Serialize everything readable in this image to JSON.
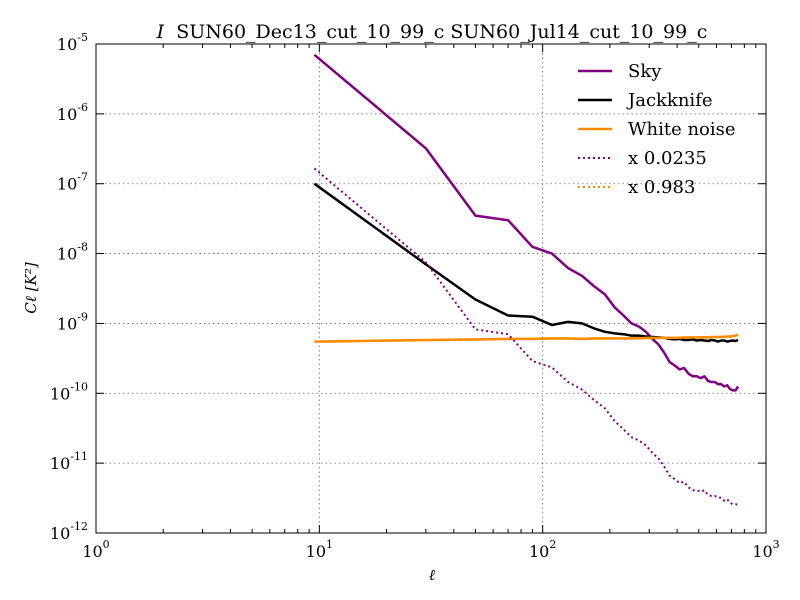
{
  "chart_data": {
    "type": "line",
    "title_prefix": "I",
    "title": "SUN60_Dec13_cut_10_99_c SUN60_Jul14_cut_10_99_c",
    "xlabel": "ℓ",
    "ylabel": "Cℓ [K²]",
    "xscale": "log",
    "yscale": "log",
    "xlim": [
      1,
      1000
    ],
    "ylim": [
      1e-12,
      1e-05
    ],
    "grid": true,
    "legend_position": "top-right",
    "x_tick_labels": [
      {
        "base": "10",
        "exp": "0"
      },
      {
        "base": "10",
        "exp": "1"
      },
      {
        "base": "10",
        "exp": "2"
      },
      {
        "base": "10",
        "exp": "3"
      }
    ],
    "y_tick_labels": [
      {
        "base": "10",
        "exp": "-12"
      },
      {
        "base": "10",
        "exp": "-11"
      },
      {
        "base": "10",
        "exp": "-10"
      },
      {
        "base": "10",
        "exp": "-9"
      },
      {
        "base": "10",
        "exp": "-8"
      },
      {
        "base": "10",
        "exp": "-7"
      },
      {
        "base": "10",
        "exp": "-6"
      },
      {
        "base": "10",
        "exp": "-5"
      }
    ],
    "series": [
      {
        "name": "Sky",
        "color": "#800080",
        "style": "solid",
        "x": [
          9.5,
          30,
          50,
          70,
          90,
          110,
          130,
          150,
          170,
          190,
          210,
          230,
          250,
          270,
          290,
          310,
          330,
          350,
          370,
          390,
          410,
          430,
          450,
          470,
          490,
          510,
          530,
          550,
          570,
          590,
          610,
          630,
          650,
          670,
          690,
          710,
          730,
          750
        ],
        "y": [
          7e-06,
          3.2e-07,
          3.5e-08,
          3e-08,
          1.25e-08,
          1e-08,
          6.2e-09,
          4.8e-09,
          3.4e-09,
          2.6e-09,
          1.7e-09,
          1.3e-09,
          1e-09,
          9e-10,
          7.6e-10,
          6e-10,
          5e-10,
          3.8e-10,
          2.8e-10,
          2.5e-10,
          2.2e-10,
          2.3e-10,
          1.9e-10,
          1.75e-10,
          1.75e-10,
          1.65e-10,
          1.75e-10,
          1.5e-10,
          1.45e-10,
          1.45e-10,
          1.35e-10,
          1.35e-10,
          1.25e-10,
          1.3e-10,
          1.15e-10,
          1.1e-10,
          1.1e-10,
          1.25e-10
        ]
      },
      {
        "name": "Jackknife",
        "color": "#000000",
        "style": "solid",
        "x": [
          9.5,
          30,
          50,
          70,
          90,
          110,
          130,
          150,
          170,
          190,
          210,
          230,
          250,
          270,
          290,
          310,
          330,
          350,
          370,
          390,
          410,
          430,
          450,
          470,
          490,
          510,
          530,
          550,
          570,
          590,
          610,
          630,
          650,
          670,
          690,
          710,
          730,
          750
        ],
        "y": [
          1e-07,
          7e-09,
          2.2e-09,
          1.3e-09,
          1.25e-09,
          9.5e-10,
          1.05e-09,
          1e-09,
          8.5e-10,
          7.6e-10,
          7.2e-10,
          7e-10,
          6.7e-10,
          6.7e-10,
          6.5e-10,
          6.4e-10,
          6.3e-10,
          6.2e-10,
          6e-10,
          5.9e-10,
          6e-10,
          5.8e-10,
          5.8e-10,
          5.9e-10,
          5.7e-10,
          5.8e-10,
          5.7e-10,
          5.6e-10,
          5.8e-10,
          5.7e-10,
          5.5e-10,
          5.7e-10,
          5.7e-10,
          5.5e-10,
          5.6e-10,
          5.7e-10,
          5.6e-10,
          5.8e-10
        ]
      },
      {
        "name": "White noise",
        "color": "#ff8c00",
        "style": "solid",
        "x": [
          9.5,
          30,
          50,
          70,
          90,
          110,
          130,
          150,
          170,
          190,
          210,
          230,
          250,
          270,
          290,
          310,
          330,
          350,
          370,
          390,
          410,
          430,
          450,
          470,
          490,
          510,
          530,
          550,
          570,
          590,
          610,
          630,
          650,
          670,
          690,
          710,
          730,
          750
        ],
        "y": [
          5.5e-10,
          5.8e-10,
          5.9e-10,
          6e-10,
          6e-10,
          6.1e-10,
          6.1e-10,
          6e-10,
          6.1e-10,
          6.1e-10,
          6.15e-10,
          6.1e-10,
          6.1e-10,
          6.15e-10,
          6.2e-10,
          6.2e-10,
          6.2e-10,
          6.2e-10,
          6.25e-10,
          6.25e-10,
          6.25e-10,
          6.3e-10,
          6.3e-10,
          6.3e-10,
          6.3e-10,
          6.35e-10,
          6.35e-10,
          6.35e-10,
          6.4e-10,
          6.4e-10,
          6.4e-10,
          6.45e-10,
          6.45e-10,
          6.5e-10,
          6.5e-10,
          6.6e-10,
          6.7e-10,
          6.9e-10
        ]
      },
      {
        "name": "x 0.0235",
        "color": "#800080",
        "style": "dotted",
        "x": [
          9.5,
          30,
          50,
          70,
          90,
          110,
          130,
          150,
          170,
          190,
          210,
          230,
          250,
          270,
          290,
          310,
          330,
          350,
          370,
          390,
          410,
          430,
          450,
          470,
          490,
          510,
          530,
          550,
          570,
          590,
          610,
          630,
          650,
          670,
          690,
          710,
          730,
          750
        ],
        "y": [
          1.65e-07,
          7.5e-09,
          8.2e-10,
          7e-10,
          2.9e-10,
          2.35e-10,
          1.45e-10,
          1.13e-10,
          8e-11,
          6.1e-11,
          4e-11,
          3.05e-11,
          2.35e-11,
          2.1e-11,
          1.8e-11,
          1.4e-11,
          1.17e-11,
          8.9e-12,
          6.6e-12,
          5.9e-12,
          5.2e-12,
          5.4e-12,
          4.5e-12,
          4.1e-12,
          4.1e-12,
          3.9e-12,
          4.1e-12,
          3.5e-12,
          3.4e-12,
          3.4e-12,
          3.2e-12,
          3.2e-12,
          2.9e-12,
          3.05e-12,
          2.7e-12,
          2.6e-12,
          2.6e-12,
          2.5e-12
        ]
      },
      {
        "name": "x 0.983",
        "color": "#ff8c00",
        "style": "dotted",
        "x": [
          9.5,
          30,
          50,
          70,
          90,
          110,
          130,
          150,
          170,
          190,
          210,
          230,
          250,
          270,
          290,
          310,
          330,
          350,
          370,
          390,
          410,
          430,
          450,
          470,
          490,
          510,
          530,
          550,
          570,
          590,
          610,
          630,
          650,
          670,
          690,
          710,
          730,
          750
        ],
        "y": [
          5.4e-10,
          5.7e-10,
          5.8e-10,
          5.9e-10,
          5.9e-10,
          6e-10,
          6e-10,
          5.9e-10,
          6e-10,
          6e-10,
          6.05e-10,
          6e-10,
          6e-10,
          6.05e-10,
          6.1e-10,
          6.1e-10,
          6.1e-10,
          6.1e-10,
          6.15e-10,
          6.15e-10,
          6.15e-10,
          6.2e-10,
          6.2e-10,
          6.2e-10,
          6.2e-10,
          6.25e-10,
          6.25e-10,
          6.25e-10,
          6.3e-10,
          6.3e-10,
          6.3e-10,
          6.35e-10,
          6.35e-10,
          6.4e-10,
          6.4e-10,
          6.5e-10,
          6.6e-10,
          6.8e-10
        ]
      }
    ]
  }
}
